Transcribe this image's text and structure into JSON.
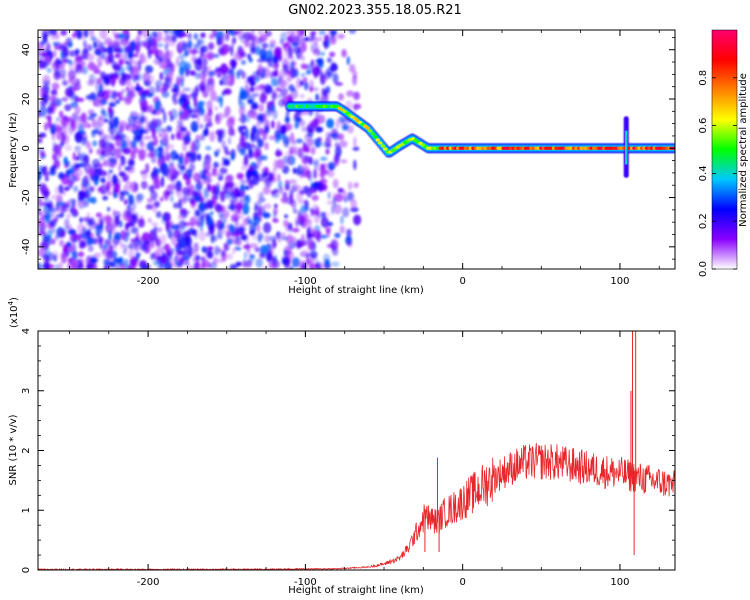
{
  "figure": {
    "title": "GN02.2023.355.18.05.R21"
  },
  "chart_data": [
    {
      "type": "heatmap",
      "xlabel": "Height of straight line (km)",
      "ylabel": "Frequency (Hz)",
      "xlim": [
        -270,
        135
      ],
      "ylim": [
        -49,
        48
      ],
      "xticks": [
        -200,
        -100,
        0,
        100
      ],
      "yticks": [
        -40,
        -20,
        0,
        20,
        40
      ],
      "colorbar": {
        "label": "Normalized spectral amplitude",
        "range": [
          0,
          1
        ],
        "ticks": [
          0.0,
          0.2,
          0.4,
          0.6,
          0.8
        ],
        "colors": [
          "#ffffff",
          "#8a00ff",
          "#0000ff",
          "#00c8ff",
          "#00ff00",
          "#ffff00",
          "#ff8000",
          "#ff0000",
          "#ff0070"
        ]
      },
      "noise_region": {
        "x_range": [
          -270,
          -75
        ],
        "amplitude_approx": 0.2
      },
      "ridge": {
        "name": "",
        "points": [
          {
            "x": -110,
            "y": 17
          },
          {
            "x": -95,
            "y": 17
          },
          {
            "x": -80,
            "y": 17
          },
          {
            "x": -75,
            "y": 15
          },
          {
            "x": -60,
            "y": 8
          },
          {
            "x": -47,
            "y": -2
          },
          {
            "x": -40,
            "y": 1
          },
          {
            "x": -32,
            "y": 4
          },
          {
            "x": -22,
            "y": 0
          },
          {
            "x": -10,
            "y": 0
          },
          {
            "x": 20,
            "y": 0
          },
          {
            "x": 60,
            "y": 0
          },
          {
            "x": 100,
            "y": 0
          },
          {
            "x": 135,
            "y": 0
          }
        ],
        "spike": {
          "x": 104,
          "y_range": [
            -11,
            12
          ]
        }
      }
    },
    {
      "type": "line",
      "xlabel": "Height of straight line (km)",
      "ylabel": "SNR (10 * v/v)",
      "yscale_label": "(x10",
      "yscale_exp": "4",
      "yscale_close": ")",
      "xlim": [
        -270,
        135
      ],
      "ylim": [
        0,
        4
      ],
      "xticks": [
        -200,
        -100,
        0,
        100
      ],
      "yticks": [
        0,
        1,
        2,
        3,
        4
      ],
      "color": "#e8262a",
      "envelope": {
        "x": [
          -270,
          -150,
          -80,
          -60,
          -50,
          -40,
          -35,
          -28,
          -24,
          -20,
          -16,
          -12,
          -5,
          0,
          10,
          20,
          30,
          40,
          50,
          60,
          70,
          80,
          90,
          100,
          110,
          120,
          135
        ],
        "y": [
          0.01,
          0.01,
          0.02,
          0.05,
          0.1,
          0.2,
          0.35,
          0.7,
          0.9,
          0.85,
          0.8,
          0.95,
          1.05,
          1.15,
          1.35,
          1.55,
          1.7,
          1.8,
          1.82,
          1.8,
          1.75,
          1.7,
          1.65,
          1.62,
          1.55,
          1.5,
          1.42
        ]
      },
      "spikes": [
        {
          "x": -24,
          "y": 0.3
        },
        {
          "x": -16,
          "y": 1.88
        },
        {
          "x": -15,
          "y": 0.3
        },
        {
          "x": 107,
          "y": 3.0
        },
        {
          "x": 108,
          "y": 4.0
        },
        {
          "x": 109,
          "y": 0.25
        },
        {
          "x": 110,
          "y": 4.0
        }
      ]
    }
  ]
}
